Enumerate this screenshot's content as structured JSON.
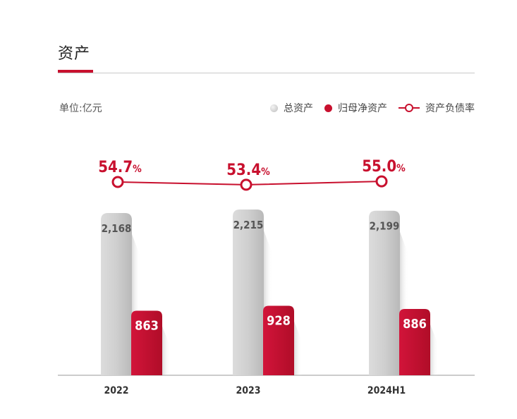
{
  "header": {
    "title": "资产",
    "unit": "单位:亿元"
  },
  "legend": {
    "total": "总资产",
    "equity": "归母净资产",
    "ratio": "资产负债率"
  },
  "chart_data": {
    "type": "bar",
    "categories": [
      "2022",
      "2023",
      "2024H1"
    ],
    "series": [
      {
        "name": "总资产",
        "values": [
          2168,
          2215,
          2199
        ],
        "labels": [
          "2,168",
          "2,215",
          "2,199"
        ],
        "color": "#c9c9c9"
      },
      {
        "name": "归母净资产",
        "values": [
          863,
          928,
          886
        ],
        "labels": [
          "863",
          "928",
          "886"
        ],
        "color": "#c8102e"
      },
      {
        "name": "资产负债率",
        "type": "line",
        "values": [
          54.7,
          53.4,
          55.0
        ],
        "labels": [
          "54.7",
          "53.4",
          "55.0"
        ],
        "unit": "%",
        "color": "#c8102e"
      }
    ]
  }
}
